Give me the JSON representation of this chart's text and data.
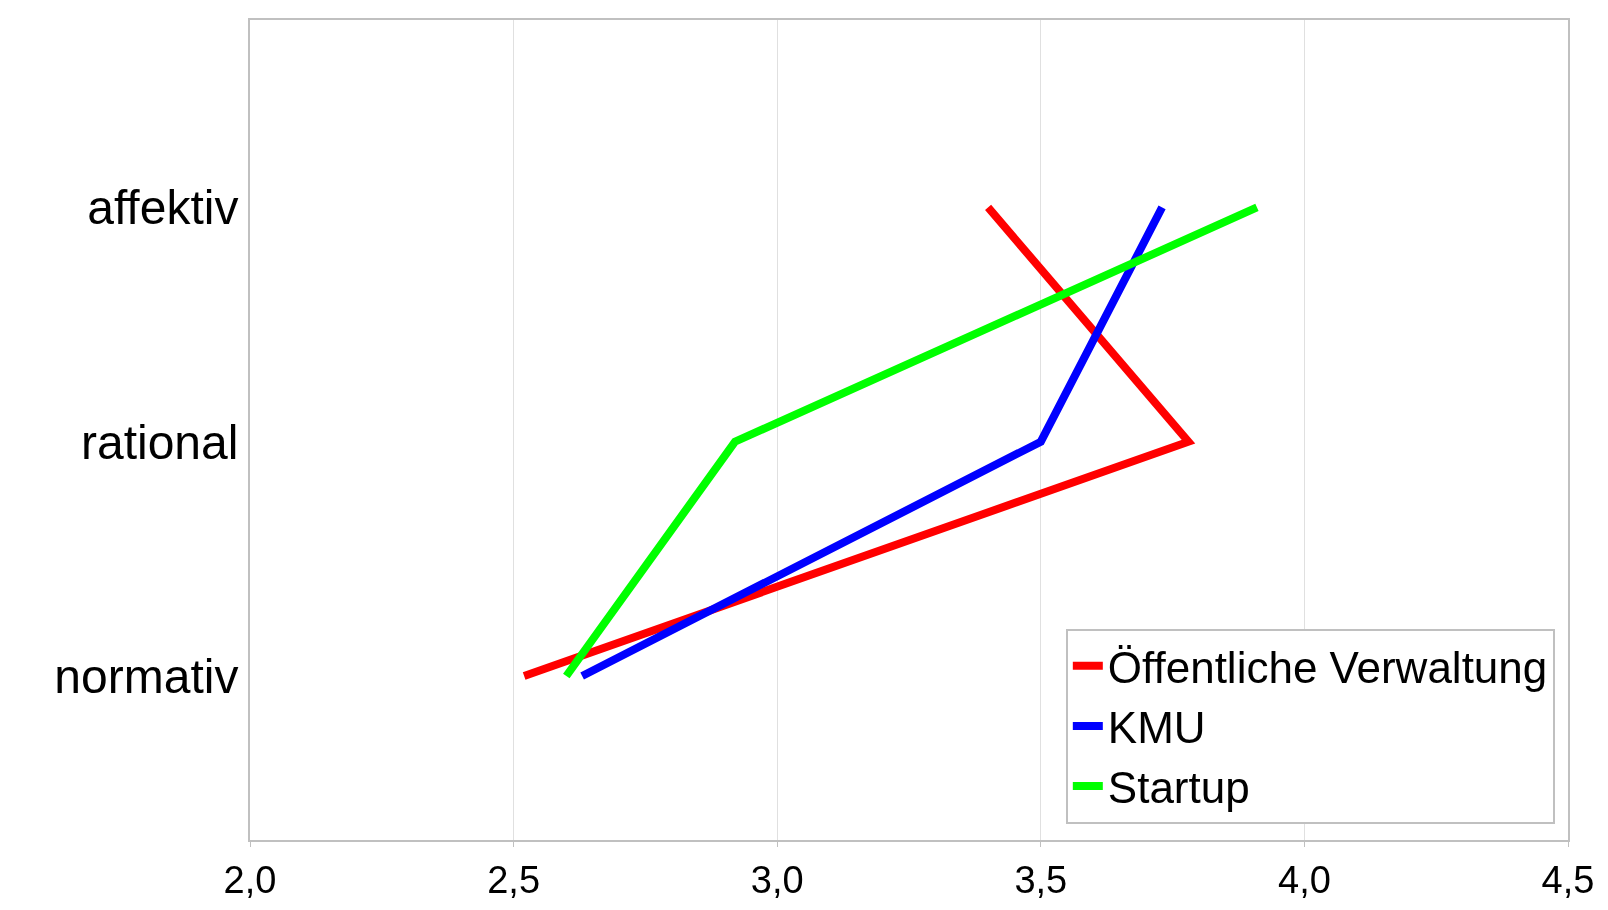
{
  "chart_data": {
    "type": "line",
    "orientation": "horizontal",
    "categories": [
      "affektiv",
      "rational",
      "normativ"
    ],
    "series": [
      {
        "name": "Öffentliche Verwaltung",
        "color": "#ff0000",
        "values": [
          3.4,
          3.78,
          2.52
        ]
      },
      {
        "name": "KMU",
        "color": "#0000ff",
        "values": [
          3.73,
          3.5,
          2.63
        ]
      },
      {
        "name": "Startup",
        "color": "#00ff00",
        "values": [
          3.91,
          2.92,
          2.6
        ]
      }
    ],
    "xlim": [
      2,
      4.5
    ],
    "xticks": [
      {
        "value": 2,
        "label": "2,0"
      },
      {
        "value": 2.5,
        "label": "2,5"
      },
      {
        "value": 3,
        "label": "3,0"
      },
      {
        "value": 3.5,
        "label": "3,5"
      },
      {
        "value": 4,
        "label": "4,0"
      },
      {
        "value": 4.5,
        "label": "4,5"
      }
    ],
    "grid": "x",
    "legend": "bottom right",
    "line_style": "solid"
  }
}
